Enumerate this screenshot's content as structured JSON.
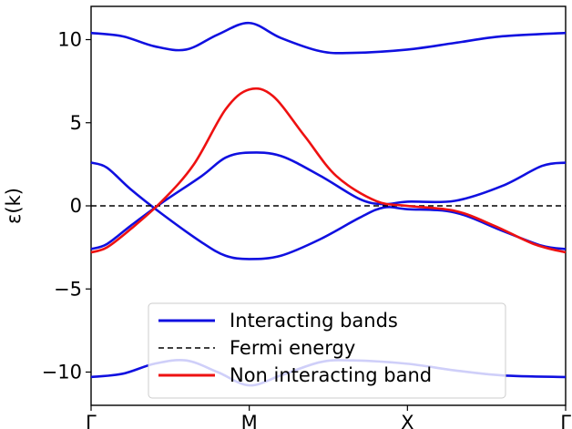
{
  "chart_data": {
    "type": "line",
    "ylabel": "ε(k)",
    "xlabel": "",
    "x_ticks": [
      "Γ",
      "M",
      "X",
      "Γ"
    ],
    "y_ticks": [
      "−10",
      "−5",
      "0",
      "5",
      "10"
    ],
    "y_tick_values": [
      -10,
      -5,
      0,
      5,
      10
    ],
    "ylim": [
      -12,
      12
    ],
    "xlim": [
      0,
      3
    ],
    "grid": false,
    "legend_position": "bottom-center",
    "colors": {
      "interacting": "#1010e0",
      "fermi": "#000000",
      "noninteracting": "#ee1111"
    },
    "series": [
      {
        "name": "Interacting bands",
        "style": "solid",
        "color": "#1010e0",
        "curves": [
          [
            [
              0,
              10.4
            ],
            [
              0.2,
              10.2
            ],
            [
              0.4,
              9.6
            ],
            [
              0.6,
              9.4
            ],
            [
              0.8,
              10.3
            ],
            [
              1.0,
              11.0
            ],
            [
              1.2,
              10.1
            ],
            [
              1.45,
              9.3
            ],
            [
              1.65,
              9.2
            ],
            [
              2.0,
              9.4
            ],
            [
              2.3,
              9.8
            ],
            [
              2.6,
              10.2
            ],
            [
              3.0,
              10.4
            ]
          ],
          [
            [
              0,
              2.6
            ],
            [
              0.1,
              2.3
            ],
            [
              0.25,
              1.0
            ],
            [
              0.45,
              -0.5
            ],
            [
              0.7,
              -2.2
            ],
            [
              0.85,
              -3.0
            ],
            [
              1.0,
              -3.2
            ],
            [
              1.2,
              -3.0
            ],
            [
              1.45,
              -2.0
            ],
            [
              1.7,
              -0.7
            ],
            [
              1.85,
              -0.1
            ],
            [
              2.0,
              -0.2
            ],
            [
              2.3,
              -0.4
            ],
            [
              2.6,
              -1.5
            ],
            [
              2.85,
              -2.4
            ],
            [
              3.0,
              -2.6
            ]
          ],
          [
            [
              0,
              -2.6
            ],
            [
              0.1,
              -2.3
            ],
            [
              0.25,
              -1.2
            ],
            [
              0.45,
              0.2
            ],
            [
              0.7,
              1.8
            ],
            [
              0.85,
              2.9
            ],
            [
              1.0,
              3.2
            ],
            [
              1.2,
              3.0
            ],
            [
              1.45,
              1.8
            ],
            [
              1.7,
              0.4
            ],
            [
              1.85,
              0.1
            ],
            [
              2.0,
              0.25
            ],
            [
              2.3,
              0.3
            ],
            [
              2.6,
              1.2
            ],
            [
              2.85,
              2.4
            ],
            [
              3.0,
              2.6
            ]
          ],
          [
            [
              0,
              -10.3
            ],
            [
              0.2,
              -10.1
            ],
            [
              0.4,
              -9.5
            ],
            [
              0.6,
              -9.3
            ],
            [
              0.8,
              -10.0
            ],
            [
              1.0,
              -10.8
            ],
            [
              1.2,
              -10.2
            ],
            [
              1.45,
              -9.4
            ],
            [
              1.65,
              -9.3
            ],
            [
              2.0,
              -9.5
            ],
            [
              2.3,
              -9.9
            ],
            [
              2.6,
              -10.2
            ],
            [
              3.0,
              -10.3
            ]
          ]
        ]
      },
      {
        "name": "Fermi energy",
        "style": "dashed",
        "color": "#000000",
        "curves": [
          [
            [
              0,
              0
            ],
            [
              3,
              0
            ]
          ]
        ]
      },
      {
        "name": "Non interacting band",
        "style": "solid",
        "color": "#ee1111",
        "curves": [
          [
            [
              0,
              -2.8
            ],
            [
              0.1,
              -2.5
            ],
            [
              0.25,
              -1.4
            ],
            [
              0.45,
              0.3
            ],
            [
              0.65,
              2.5
            ],
            [
              0.85,
              5.8
            ],
            [
              1.0,
              7.0
            ],
            [
              1.15,
              6.6
            ],
            [
              1.35,
              4.2
            ],
            [
              1.55,
              1.8
            ],
            [
              1.8,
              0.3
            ],
            [
              2.0,
              0.0
            ],
            [
              2.3,
              -0.3
            ],
            [
              2.55,
              -1.2
            ],
            [
              2.8,
              -2.3
            ],
            [
              3.0,
              -2.8
            ]
          ]
        ]
      }
    ]
  }
}
